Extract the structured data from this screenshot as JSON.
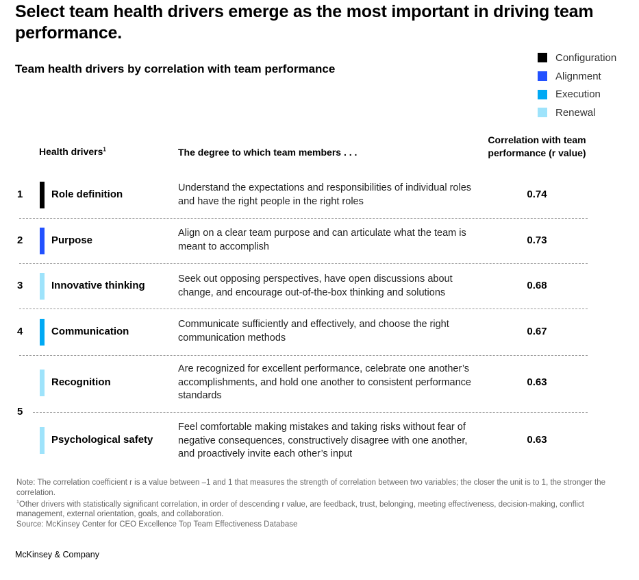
{
  "headline": "Select team health drivers emerge as the most important in driving team performance.",
  "chart_data": {
    "type": "table",
    "subtitle": "Team health drivers by correlation with team performance",
    "legend": [
      {
        "name": "Configuration",
        "color": "#000000"
      },
      {
        "name": "Alignment",
        "color": "#2251ff"
      },
      {
        "name": "Execution",
        "color": "#00a9f4"
      },
      {
        "name": "Renewal",
        "color": "#9ee3fb"
      }
    ],
    "columns": {
      "driver": "Health drivers",
      "driver_footnote": "1",
      "degree": "The degree to which team members . . .",
      "corr_line1": "Correlation with team",
      "corr_line2": "performance (r value)"
    },
    "rows": [
      {
        "rank": "1",
        "name": "Role definition",
        "category": "Configuration",
        "color": "#000000",
        "desc": "Understand the expectations and responsibilities of individual roles and have the right people in the right roles",
        "value": "0.74"
      },
      {
        "rank": "2",
        "name": "Purpose",
        "category": "Alignment",
        "color": "#2251ff",
        "desc": "Align on a clear team purpose and can articulate what the team is meant to accomplish",
        "value": "0.73"
      },
      {
        "rank": "3",
        "name": "Innovative thinking",
        "category": "Renewal",
        "color": "#9ee3fb",
        "desc": "Seek out opposing perspectives, have open discussions about change, and encourage out-of-the-box thinking and solutions",
        "value": "0.68"
      },
      {
        "rank": "4",
        "name": "Communication",
        "category": "Execution",
        "color": "#00a9f4",
        "desc": "Communicate sufficiently and effectively, and choose the right communication methods",
        "value": "0.67"
      },
      {
        "rank": "5",
        "name": "Recognition",
        "category": "Renewal",
        "color": "#9ee3fb",
        "desc": "Are recognized for excellent performance, celebrate one another’s accomplishments, and hold one another to consistent performance standards",
        "value": "0.63"
      },
      {
        "rank": "5",
        "name": "Psychological safety",
        "category": "Renewal",
        "color": "#9ee3fb",
        "desc": "Feel comfortable making mistakes and taking risks without fear of negative consequences, constructively disagree with one another, and proactively invite each other’s input",
        "value": "0.63"
      }
    ]
  },
  "notes": {
    "note": "Note: The correlation coefficient r is a value between –1 and 1 that measures the strength of correlation between two variables; the closer the unit is to 1, the stronger the correlation.",
    "footnote_mark": "1",
    "footnote": "Other drivers with statistically significant correlation, in order of descending r value, are feedback, trust, belonging, meeting effectiveness, decision-making, conflict management, external orientation, goals, and collaboration.",
    "source": "Source: McKinsey Center for CEO Excellence Top Team Effectiveness Database"
  },
  "footer": "McKinsey & Company"
}
